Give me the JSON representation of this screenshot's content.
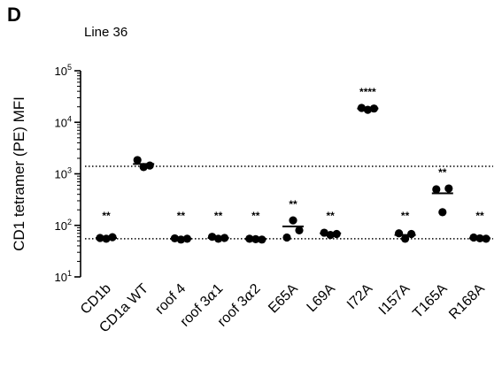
{
  "panel_label": "D",
  "chart_data": {
    "type": "scatter",
    "title": "Line 36",
    "xlabel": "",
    "ylabel": "CD1 tetramer (PE) MFI",
    "yscale": "log",
    "ylim": [
      10,
      100000
    ],
    "yticks": [
      {
        "value": 10,
        "base": "10",
        "exp": "1"
      },
      {
        "value": 100,
        "base": "10",
        "exp": "2"
      },
      {
        "value": 1000,
        "base": "10",
        "exp": "3"
      },
      {
        "value": 10000,
        "base": "10",
        "exp": "4"
      },
      {
        "value": 100000,
        "base": "10",
        "exp": "5"
      }
    ],
    "categories": [
      {
        "main": "CD1b",
        "greek": "",
        "tail": ""
      },
      {
        "main": "CD1a WT",
        "greek": "",
        "tail": ""
      },
      {
        "main": "roof 4",
        "greek": "",
        "tail": ""
      },
      {
        "main": "roof 3",
        "greek": "α",
        "tail": "1"
      },
      {
        "main": "roof 3",
        "greek": "α",
        "tail": "2"
      },
      {
        "main": "E65A",
        "greek": "",
        "tail": ""
      },
      {
        "main": "L69A",
        "greek": "",
        "tail": ""
      },
      {
        "main": "I72A",
        "greek": "",
        "tail": ""
      },
      {
        "main": "I157A",
        "greek": "",
        "tail": ""
      },
      {
        "main": "T165A",
        "greek": "",
        "tail": ""
      },
      {
        "main": "R168A",
        "greek": "",
        "tail": ""
      }
    ],
    "points": [
      [
        57,
        55,
        59
      ],
      [
        1850,
        1350,
        1450
      ],
      [
        56,
        53,
        55
      ],
      [
        60,
        55,
        57
      ],
      [
        55,
        54,
        53
      ],
      [
        58,
        125,
        80
      ],
      [
        72,
        65,
        68
      ],
      [
        19000,
        17500,
        18500
      ],
      [
        70,
        55,
        68
      ],
      [
        500,
        180,
        520
      ],
      [
        58,
        56,
        55
      ]
    ],
    "means": [
      57,
      1550,
      55,
      57,
      54,
      95,
      70,
      18500,
      65,
      420,
      56
    ],
    "significance": [
      "**",
      "",
      "**",
      "**",
      "**",
      "**",
      "**",
      "****",
      "**",
      "**",
      "**"
    ],
    "reference_lines": [
      1400,
      55
    ],
    "colors": {
      "points": "#000000",
      "axes": "#000000",
      "reference_line": "#000000"
    }
  }
}
